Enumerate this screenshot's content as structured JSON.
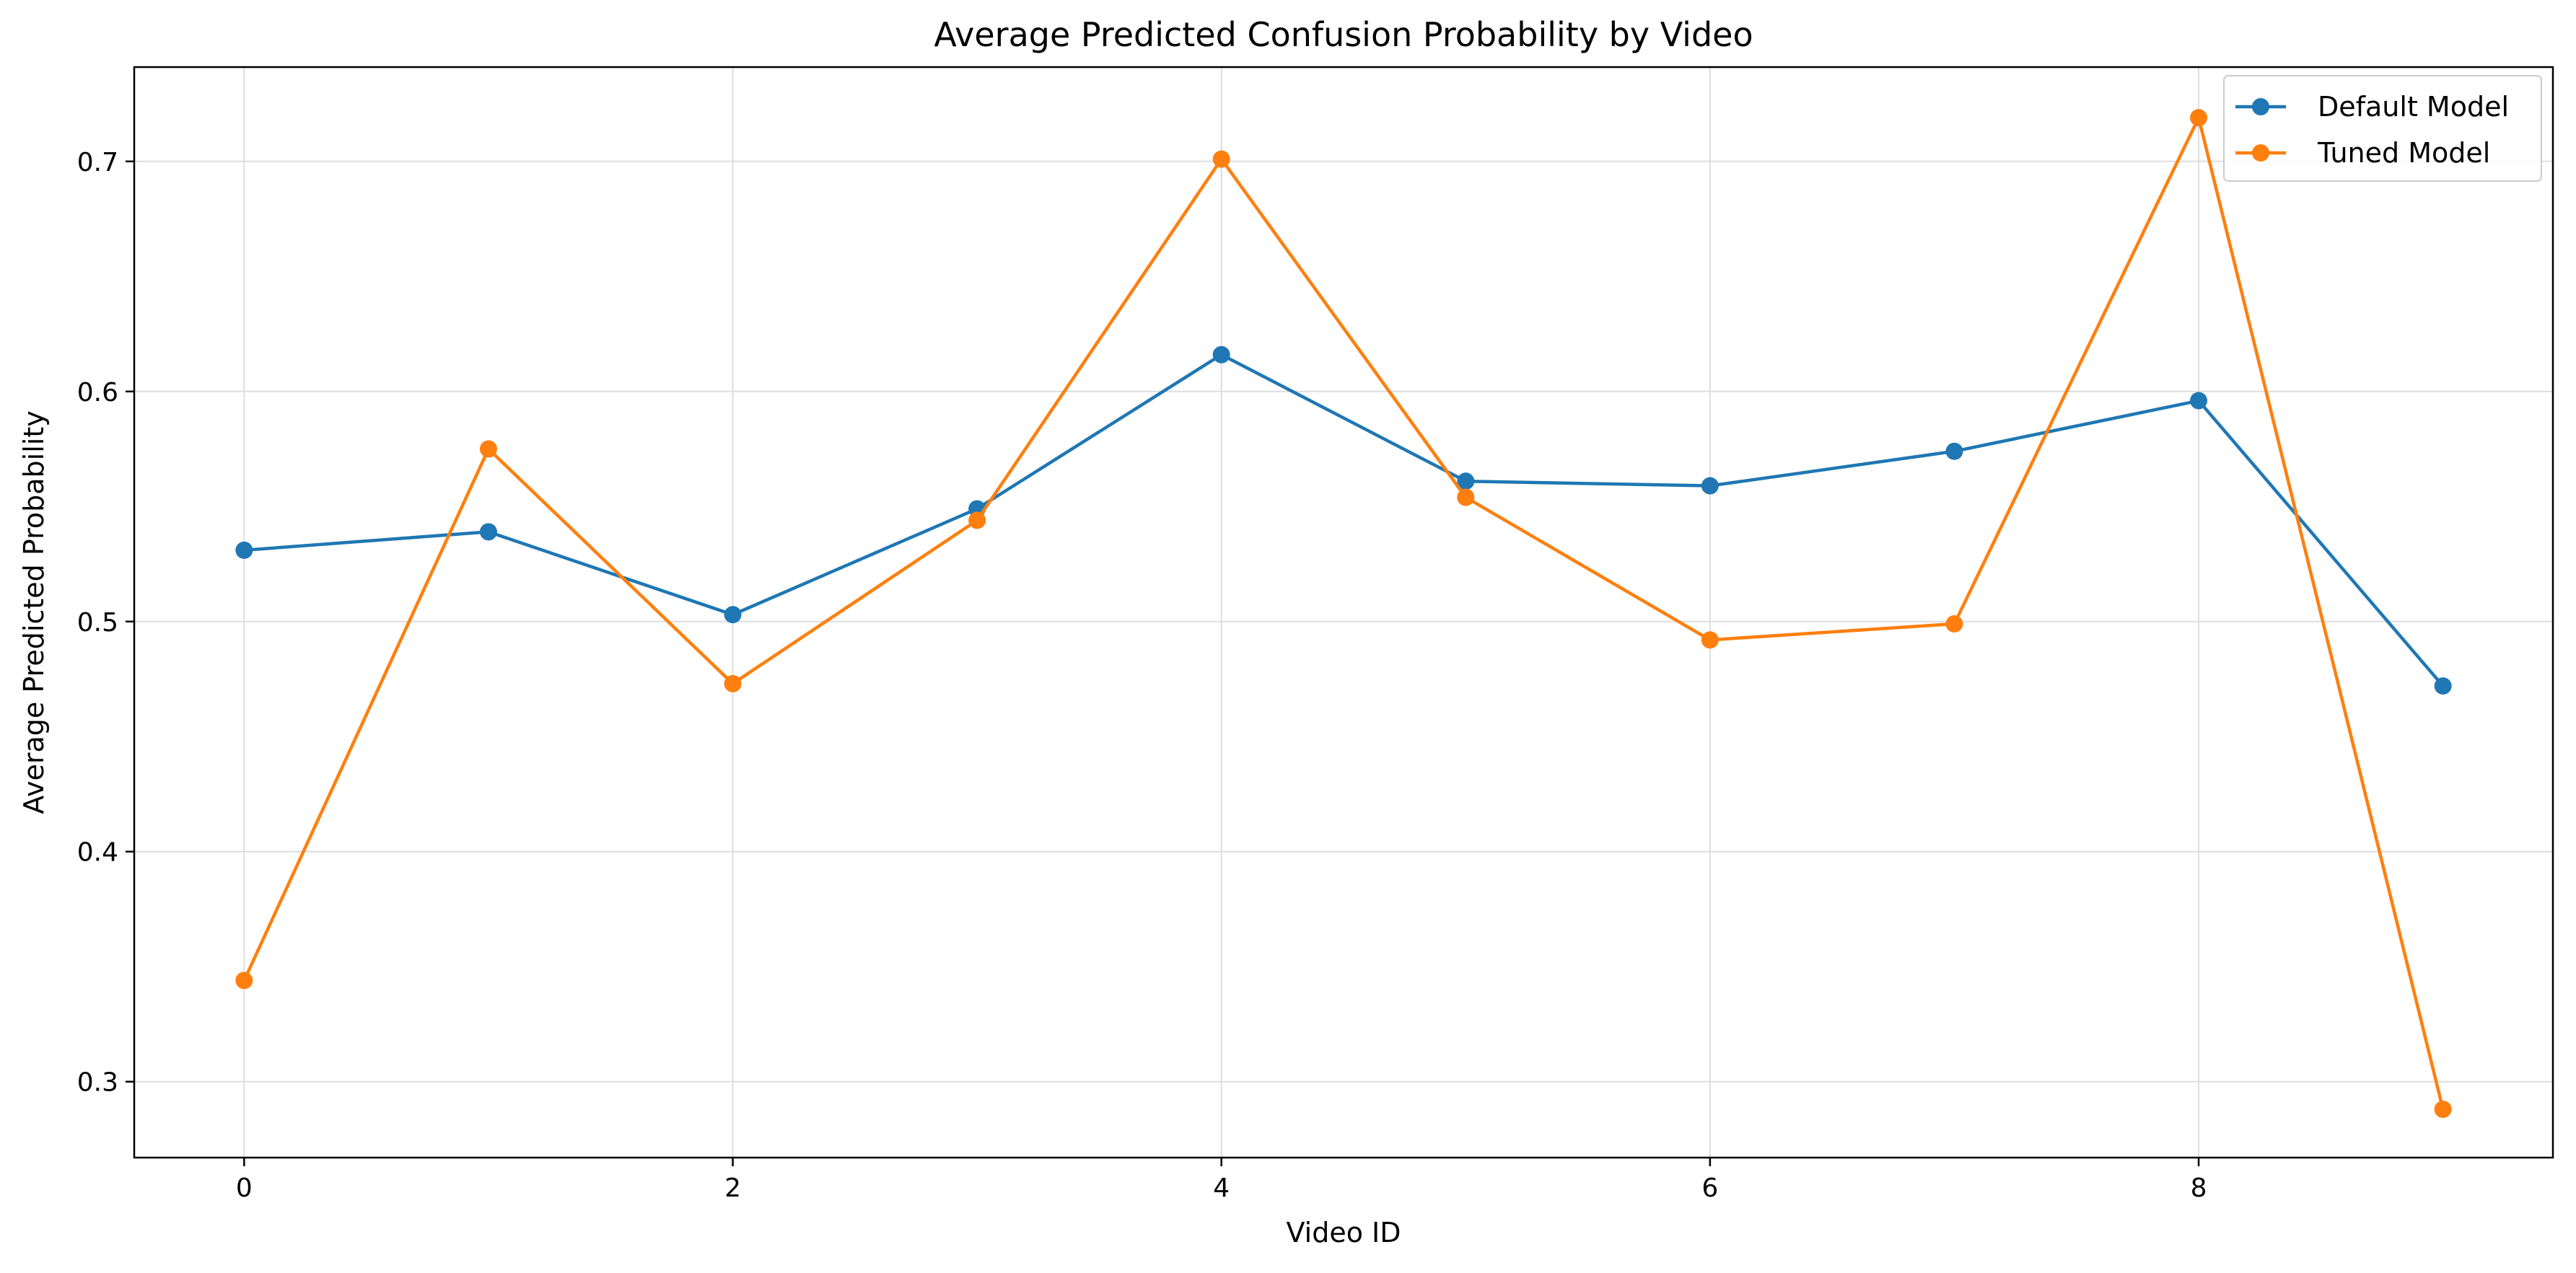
{
  "chart_data": {
    "type": "line",
    "title": "Average Predicted Confusion Probability by Video",
    "xlabel": "Video ID",
    "ylabel": "Average Predicted Probability",
    "x": [
      0,
      1,
      2,
      3,
      4,
      5,
      6,
      7,
      8,
      9
    ],
    "xlim": [
      -0.45,
      9.45
    ],
    "ylim": [
      0.267,
      0.741
    ],
    "xticks": [
      0,
      2,
      4,
      6,
      8
    ],
    "xtick_labels": [
      "0",
      "2",
      "4",
      "6",
      "8"
    ],
    "yticks": [
      0.3,
      0.4,
      0.5,
      0.6,
      0.7
    ],
    "ytick_labels": [
      "0.3",
      "0.4",
      "0.5",
      "0.6",
      "0.7"
    ],
    "grid": true,
    "legend_position": "top-right",
    "series": [
      {
        "name": "Default Model",
        "color": "#1f77b4",
        "marker": "circle",
        "values": [
          0.531,
          0.539,
          0.503,
          0.549,
          0.616,
          0.561,
          0.559,
          0.574,
          0.596,
          0.472
        ]
      },
      {
        "name": "Tuned Model",
        "color": "#ff7f0e",
        "marker": "circle",
        "values": [
          0.344,
          0.575,
          0.473,
          0.544,
          0.701,
          0.554,
          0.492,
          0.499,
          0.719,
          0.288
        ]
      }
    ]
  }
}
